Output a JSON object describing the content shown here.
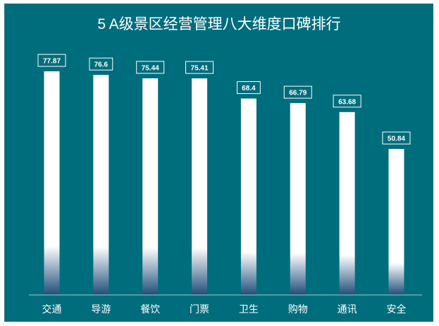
{
  "chart_data": {
    "type": "bar",
    "title": "5 A级景区经营管理八大维度口碑排行",
    "categories": [
      "交通",
      "导游",
      "餐饮",
      "门票",
      "卫生",
      "购物",
      "通讯",
      "安全"
    ],
    "values": [
      77.87,
      76.6,
      75.44,
      75.41,
      68.4,
      66.79,
      63.68,
      50.84
    ],
    "value_labels": [
      "77.87",
      "76.6",
      "75.44",
      "75.41",
      "68.4",
      "66.79",
      "63.68",
      "50.84"
    ],
    "ylim": [
      0,
      100
    ],
    "grid": false,
    "legend": "none",
    "colors": {
      "background": "#006d7d",
      "bar_top": "#ffffff",
      "bar_bottom": "#1f4e79",
      "label_border": "#ffffff",
      "axis": "#9fc9cf"
    }
  }
}
